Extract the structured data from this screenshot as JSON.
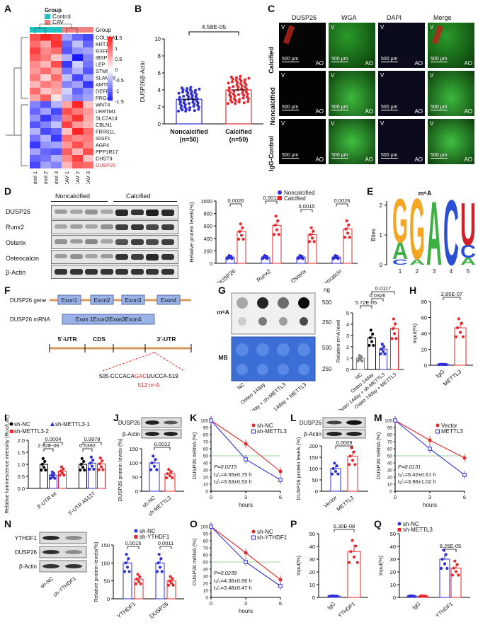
{
  "panels": {
    "A": "A",
    "B": "B",
    "C": "C",
    "D": "D",
    "E": "E",
    "F": "F",
    "G": "G",
    "H": "H",
    "I": "I",
    "J": "J",
    "K": "K",
    "L": "L",
    "M": "M",
    "N": "N",
    "O": "O",
    "P": "P",
    "Q": "Q"
  },
  "colors": {
    "control": "#1fc3c3",
    "cav": "#f08080",
    "red": "#e8262a",
    "blue": "#2f2fd6",
    "green": "#3ab53a",
    "ref": "#7ec87e"
  },
  "panelA": {
    "legend_title": "Group",
    "legend_items": [
      "Control",
      "CAV"
    ],
    "group_label": "Group",
    "genes": [
      "COL10A1",
      "KRT14",
      "RXFP1",
      "IBSP",
      "LEP",
      "STMN2",
      "SLAMF9",
      "AMTN",
      "DEFB1",
      "PRG4",
      "WNT4",
      "LRRTM1",
      "SLC7A14",
      "CBLN1",
      "FRRS1L",
      "IGSF1",
      "AGP4",
      "PPP1R17",
      "CHST9",
      "DUSP26"
    ],
    "samples": [
      "Control 1",
      "Control 2",
      "Control 3",
      "CAV 1",
      "CAV 2",
      "CAV 3"
    ],
    "scale": [
      "1.5",
      "1",
      "0.5",
      "0",
      "-0.5",
      "-1",
      "-1.5"
    ],
    "matrix": [
      [
        1.2,
        1.5,
        1.3,
        -0.6,
        -1.0,
        -1.2
      ],
      [
        1.0,
        0.6,
        1.4,
        -1.0,
        -0.4,
        -1.0
      ],
      [
        1.3,
        0.8,
        1.0,
        -1.1,
        -0.7,
        -0.6
      ],
      [
        1.1,
        0.9,
        0.4,
        -0.5,
        -1.5,
        -0.8
      ],
      [
        0.8,
        0.5,
        1.2,
        -1.3,
        -0.3,
        -0.9
      ],
      [
        0.7,
        1.0,
        0.6,
        -0.9,
        -0.5,
        -1.1
      ],
      [
        0.9,
        0.3,
        1.0,
        -0.4,
        -1.2,
        -0.6
      ],
      [
        0.5,
        0.9,
        0.7,
        -0.8,
        -0.6,
        -1.3
      ],
      [
        1.0,
        0.4,
        0.6,
        -0.3,
        -1.0,
        -0.7
      ],
      [
        0.6,
        1.1,
        0.2,
        -0.5,
        -0.8,
        -0.6
      ],
      [
        -0.8,
        -1.1,
        -0.5,
        0.6,
        1.5,
        0.4
      ],
      [
        -1.0,
        -0.6,
        -1.2,
        1.2,
        0.9,
        0.7
      ],
      [
        -0.7,
        -1.3,
        -0.9,
        0.9,
        1.4,
        0.6
      ],
      [
        -1.1,
        -0.8,
        -0.4,
        1.3,
        0.7,
        0.5
      ],
      [
        -0.5,
        -1.2,
        -1.0,
        0.4,
        1.5,
        1.0
      ],
      [
        -0.9,
        -0.5,
        -1.3,
        1.0,
        0.8,
        0.9
      ],
      [
        -1.3,
        -0.7,
        -0.6,
        0.7,
        1.2,
        0.8
      ],
      [
        -0.6,
        -1.0,
        -1.1,
        1.1,
        0.5,
        1.2
      ],
      [
        -1.0,
        -0.9,
        -0.5,
        0.8,
        1.3,
        0.4
      ],
      [
        -1.2,
        -0.6,
        -0.8,
        0.5,
        1.1,
        1.0
      ]
    ]
  },
  "panelB": {
    "ylabel": "DUSP26/β-Actin",
    "pval": "4.58E-05",
    "groups": [
      "Noncalcified",
      "Calcified"
    ],
    "ns": [
      "(n=50)",
      "(n=50)"
    ],
    "yticks": [
      "0",
      "2",
      "4",
      "6",
      "8",
      "10"
    ],
    "means": [
      2.9,
      4.0
    ]
  },
  "panelC": {
    "columns": [
      "DUSP26",
      "WGA",
      "DAPI",
      "Merge"
    ],
    "rows": [
      "Calcified",
      "Noncalcified",
      "IgG-Control"
    ],
    "scale": "500 μm",
    "v": "V",
    "ao": "AO"
  },
  "panelD": {
    "groups": [
      "Noncalcified",
      "Calcified"
    ],
    "blot_labels": [
      "DUSP26",
      "Runx2",
      "Osterix",
      "Osteocalcin",
      "β-Actin"
    ],
    "ylabel": "Relative protein levels(%)",
    "legend": [
      "Noncalcified",
      "Calcified"
    ],
    "categories": [
      "DUSP26",
      "Runx2",
      "Osterix",
      "Osteocalcin"
    ],
    "pvals": [
      "0.0026",
      "0.0012",
      "0.0015",
      "0.0026"
    ],
    "yticks": [
      "0",
      "200",
      "400",
      "600",
      "800",
      "1000"
    ],
    "chart_data": {
      "type": "bar",
      "categories": [
        "DUSP26",
        "Runx2",
        "Osterix",
        "Osteocalcin"
      ],
      "series": [
        {
          "name": "Noncalcified",
          "values": [
            100,
            100,
            100,
            100
          ]
        },
        {
          "name": "Calcified",
          "values": [
            510,
            610,
            460,
            550
          ]
        }
      ],
      "ylabel": "Relative protein levels(%)",
      "ylim": [
        0,
        1000
      ]
    }
  },
  "panelE": {
    "title": "m⁶A",
    "ylabel": "Bites",
    "xticks": [
      "1",
      "2",
      "3",
      "4",
      "5"
    ],
    "yticks": [
      "0",
      "1",
      "2"
    ]
  },
  "panelF": {
    "gene_label": "DUSP26 gene",
    "mrna_label": "DUSP26 mRNA",
    "exons": [
      "Exon1",
      "Exon2",
      "Exon3",
      "Exon4"
    ],
    "mrna_exons": "Exon 1Exon2Exon3Exon4",
    "utr5": "5'-UTR",
    "cds": "CDS",
    "utr3": "3'-UTR",
    "seq_prefix": "505-CCCACA",
    "seq_site": "GAC",
    "seq_suffix": "UUCCA-519",
    "site": "512:m⁶A"
  },
  "panelG": {
    "ng": "ng",
    "m6a": "m⁶A",
    "mb": "MB",
    "doses": [
      "500",
      "250",
      "500",
      "250"
    ],
    "lanes": [
      "NC",
      "Osteo 14day",
      "Osteo 14day + sh-METTL3",
      "Osteo 14day + METTL3"
    ],
    "pvals": [
      "5.72E-05",
      "0.0326",
      "0.0117"
    ],
    "ylabel": "Relative m⁶A level",
    "yticks": [
      "0",
      "1",
      "2",
      "3",
      "4",
      "5"
    ],
    "means": [
      1.0,
      2.8,
      1.8,
      3.6
    ]
  },
  "panelH": {
    "pval": "2.85E-07",
    "ylabel": "Input(%)",
    "yticks": [
      "0",
      "20",
      "40",
      "60",
      "80"
    ],
    "groups": [
      "IgG",
      "METTL3"
    ],
    "means": [
      1.0,
      47
    ]
  },
  "panelI": {
    "legend": [
      "sh-NC",
      "sh-METTL3-1",
      "sh-METTL3-2"
    ],
    "ylabel": "Relative luminescence intensity (Ruc/Luc)",
    "pvals": [
      "0.0004",
      "2.92E-06",
      "0.9978",
      "0.5392"
    ],
    "yticks": [
      "0.0",
      "0.5",
      "1.0",
      "1.5",
      "2.0"
    ],
    "groups": [
      "3'-UTR wt",
      "3'-UTR A512T"
    ],
    "means": [
      [
        1.0,
        0.55,
        0.72
      ],
      [
        1.0,
        1.05,
        1.02
      ]
    ]
  },
  "panelJ": {
    "blots": [
      "DUSP26",
      "β-Actin"
    ],
    "pval": "0.0022",
    "ylabel": "DUSP26 protein levels (%)",
    "yticks": [
      "0",
      "50",
      "100",
      "150"
    ],
    "groups": [
      "sh-NC",
      "sh-METTL3"
    ],
    "means": [
      100,
      62
    ]
  },
  "panelK": {
    "ylabel": "DUSP26 mRNA (%)",
    "xlabel": "hours",
    "legend": [
      "sh-NC",
      "sh-METTL3"
    ],
    "p": "P=0.0215",
    "t1": "t₁/₂=4.55±0.75 h",
    "t2": "t₁/₂=3.53±0.53 h",
    "xticks": [
      "0",
      "3",
      "6"
    ],
    "yticks": [
      "0",
      "10",
      "20",
      "30",
      "40",
      "50",
      "60",
      "70",
      "80",
      "90",
      "100"
    ],
    "chart_data": {
      "type": "line",
      "x": [
        0,
        3,
        6
      ],
      "series": [
        {
          "name": "sh-NC",
          "values": [
            100,
            67,
            28
          ]
        },
        {
          "name": "sh-METTL3",
          "values": [
            100,
            45,
            16
          ]
        }
      ],
      "xlabel": "hours",
      "ylabel": "DUSP26 mRNA (%)",
      "ylim": [
        0,
        100
      ]
    }
  },
  "panelL": {
    "blots": [
      "DUSP26",
      "β-Actin"
    ],
    "pval": "0.0009",
    "ylabel": "DUSP26 protein levels (%)",
    "yticks": [
      "0",
      "50",
      "100",
      "150",
      "200"
    ],
    "groups": [
      "Vector",
      "METTL3"
    ],
    "means": [
      100,
      155
    ]
  },
  "panelM": {
    "ylabel": "DUSP26 mRNA (%)",
    "xlabel": "hours",
    "legend": [
      "Vector",
      "METTL3"
    ],
    "p": "P=0.0131",
    "t1": "t₁/₂=6.42±0.61 h",
    "t2": "t₁/₂=3.96±1.02 h",
    "xticks": [
      "0",
      "3",
      "6"
    ],
    "yticks": [
      "0",
      "10",
      "20",
      "30",
      "40",
      "50",
      "60",
      "70",
      "80",
      "90",
      "100"
    ],
    "chart_data": {
      "type": "line",
      "x": [
        0,
        3,
        6
      ],
      "series": [
        {
          "name": "Vector",
          "values": [
            100,
            72,
            47
          ]
        },
        {
          "name": "METTL3",
          "values": [
            100,
            60,
            23
          ]
        }
      ],
      "xlabel": "hours",
      "ylabel": "DUSP26 mRNA (%)",
      "ylim": [
        0,
        100
      ]
    }
  },
  "panelN": {
    "blots": [
      "YTHDF1",
      "DUSP26",
      "β-Actin"
    ],
    "lanes": [
      "sh-NC",
      "sh-YTHDF1"
    ],
    "legend": [
      "sh-NC",
      "sh-YTHDF1"
    ],
    "pvals": [
      "0.0015",
      "0.0011"
    ],
    "ylabel": "Relative protein levels(%)",
    "yticks": [
      "0",
      "50",
      "100",
      "150"
    ],
    "categories": [
      "YTHDF1",
      "DUSP26"
    ],
    "means": [
      [
        100,
        55
      ],
      [
        100,
        50
      ]
    ]
  },
  "panelO": {
    "ylabel": "DUSP26 mRNA (%)",
    "xlabel": "hours",
    "legend": [
      "sh-NC",
      "sh-YTHDF1"
    ],
    "p": "P=0.0239",
    "t1": "t₁/₂=4.36±0.66 h",
    "t2": "t₁/₂=3.48±0.47 h",
    "xticks": [
      "0",
      "3",
      "6"
    ],
    "yticks": [
      "0",
      "10",
      "20",
      "30",
      "40",
      "50",
      "60",
      "70",
      "80",
      "90",
      "100"
    ],
    "chart_data": {
      "type": "line",
      "x": [
        0,
        3,
        6
      ],
      "series": [
        {
          "name": "sh-NC",
          "values": [
            100,
            63,
            25
          ]
        },
        {
          "name": "sh-YTHDF1",
          "values": [
            100,
            50,
            16
          ]
        }
      ],
      "xlabel": "hours",
      "ylabel": "DUSP26 mRNA (%)",
      "ylim": [
        0,
        100
      ]
    }
  },
  "panelP": {
    "pval": "6.30E-08",
    "ylabel": "Input(%)",
    "yticks": [
      "0",
      "10",
      "20",
      "30",
      "40",
      "50"
    ],
    "groups": [
      "IgG",
      "YTHDF1"
    ],
    "means": [
      1.0,
      36
    ]
  },
  "panelQ": {
    "legend": [
      "sh-NC",
      "sh-METTL3"
    ],
    "pval": "8.25E-05",
    "ylabel": "Input(%)",
    "yticks": [
      "0",
      "10",
      "20",
      "30",
      "40",
      "50"
    ],
    "groups": [
      "IgG",
      "YTHDF1"
    ],
    "means": [
      [
        1.0,
        1.0
      ],
      [
        30,
        23
      ]
    ]
  }
}
